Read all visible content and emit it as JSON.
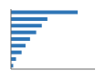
{
  "chart_data": {
    "type": "bar",
    "orientation": "horizontal",
    "categories": [
      null,
      null,
      null,
      null,
      null,
      null,
      null,
      null,
      null
    ],
    "values": [
      238,
      130,
      110,
      90,
      68,
      52,
      38,
      18,
      8
    ],
    "color": "#2e75b6",
    "xlim": [
      0,
      300
    ],
    "grid": false,
    "tick_labels": false
  }
}
